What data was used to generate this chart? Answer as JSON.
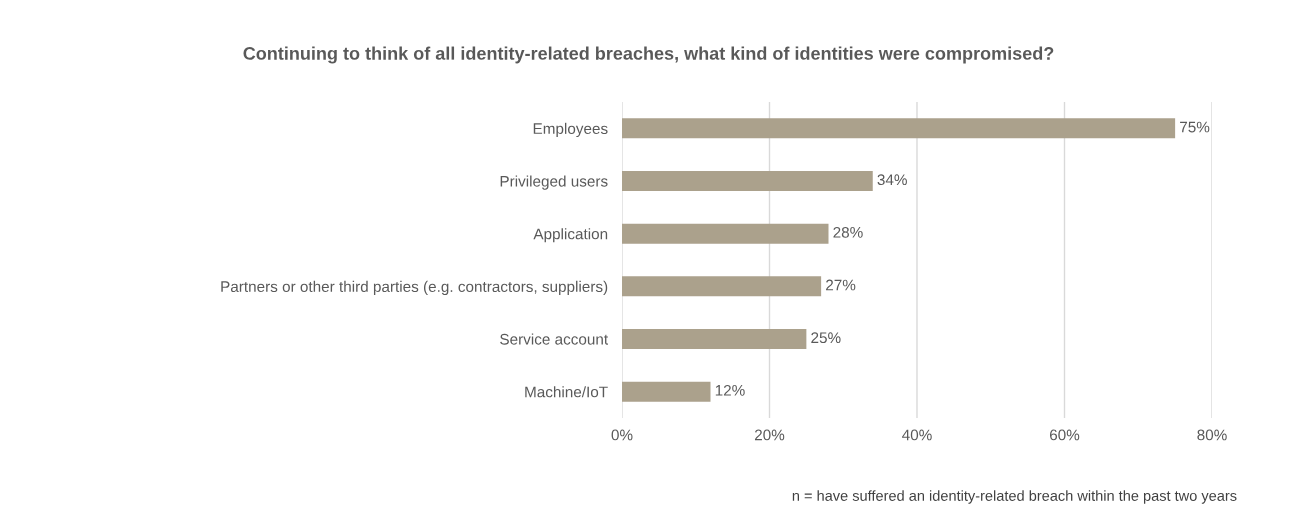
{
  "chart_data": {
    "type": "bar",
    "orientation": "horizontal",
    "title": "Continuing to think of all identity-related breaches, what kind of identities were compromised?",
    "categories": [
      "Employees",
      "Privileged users",
      "Application",
      "Partners or other third parties (e.g. contractors, suppliers)",
      "Service account",
      "Machine/IoT"
    ],
    "values": [
      75,
      34,
      28,
      27,
      25,
      12
    ],
    "value_labels": [
      "75%",
      "34%",
      "28%",
      "27%",
      "25%",
      "12%"
    ],
    "color": "#aba18c",
    "xlim": [
      0,
      80
    ],
    "xticks": [
      {
        "value": 0,
        "label": "0%"
      },
      {
        "value": 20,
        "label": "20%"
      },
      {
        "value": 40,
        "label": "40%"
      },
      {
        "value": 60,
        "label": "60%"
      },
      {
        "value": 80,
        "label": "80%"
      }
    ],
    "grid": "x",
    "annotations": [
      "n = have suffered an identity-related breach within the past two years"
    ]
  }
}
